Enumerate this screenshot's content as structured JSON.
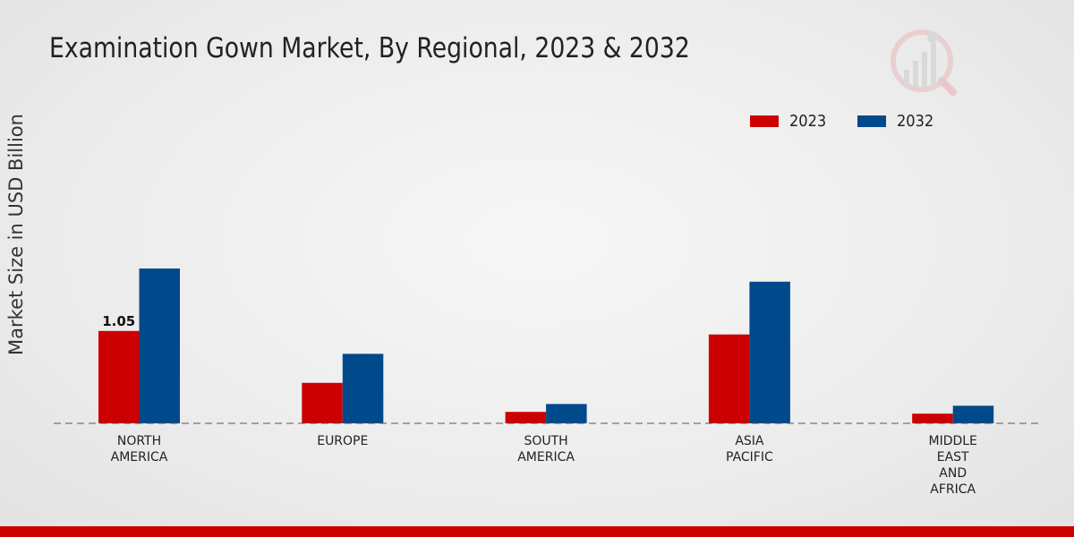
{
  "chart_data": {
    "type": "bar",
    "title": "Examination Gown Market, By Regional, 2023 & 2032",
    "ylabel": "Market Size in USD Billion",
    "xlabel": "",
    "categories": [
      "NORTH\nAMERICA",
      "EUROPE",
      "SOUTH\nAMERICA",
      "ASIA\nPACIFIC",
      "MIDDLE\nEAST\nAND\nAFRICA"
    ],
    "series": [
      {
        "name": "2023",
        "color": "#cc0000",
        "values": [
          1.05,
          0.46,
          0.13,
          1.01,
          0.11
        ]
      },
      {
        "name": "2032",
        "color": "#004a8c",
        "values": [
          1.76,
          0.79,
          0.22,
          1.61,
          0.2
        ]
      }
    ],
    "data_labels": [
      {
        "series": 0,
        "index": 0,
        "text": "1.05"
      }
    ],
    "ylim": [
      0,
      3.0
    ],
    "grid": false,
    "legend_position": "top-right"
  },
  "logo": {
    "name": "market-research-logo-icon"
  },
  "colors": {
    "accent_bar": "#cc0000"
  }
}
